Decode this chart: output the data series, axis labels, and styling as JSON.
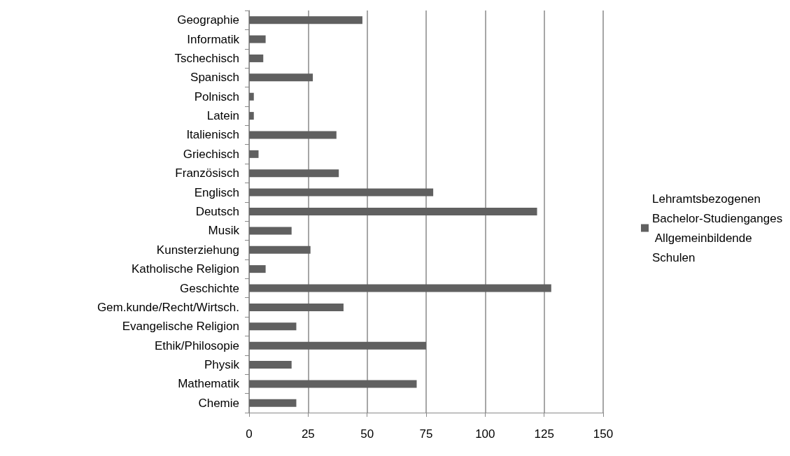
{
  "chart_data": {
    "type": "bar",
    "orientation": "horizontal",
    "categories": [
      "Geographie",
      "Informatik",
      "Tschechisch",
      "Spanisch",
      "Polnisch",
      "Latein",
      "Italienisch",
      "Griechisch",
      "Französisch",
      "Englisch",
      "Deutsch",
      "Musik",
      "Kunsterziehung",
      "Katholische Religion",
      "Geschichte",
      "Gem.kunde/Recht/Wirtsch.",
      "Evangelische Religion",
      "Ethik/Philosopie",
      "Physik",
      "Mathematik",
      "Chemie"
    ],
    "series": [
      {
        "name": "Lehramtsbezogenen Bachelor-Studienganges Allgemeinbildende Schulen",
        "color": "#606060",
        "values": [
          48,
          7,
          6,
          27,
          2,
          2,
          37,
          4,
          38,
          78,
          122,
          18,
          26,
          7,
          128,
          40,
          20,
          75,
          18,
          71,
          20
        ]
      }
    ],
    "xlim": [
      0,
      150
    ],
    "xticks": [
      0,
      25,
      50,
      75,
      100,
      125,
      150
    ],
    "grid": "x",
    "legend": "right"
  }
}
